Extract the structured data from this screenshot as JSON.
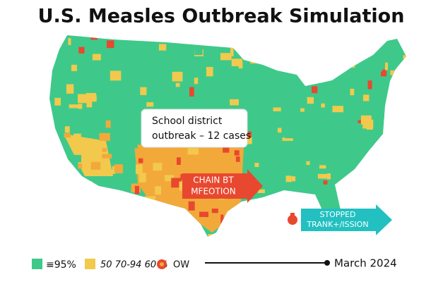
{
  "title": "U.S. Measles Outbreak Simulation",
  "callout": {
    "lines": [
      "School district",
      "outbreak – 12 cases"
    ]
  },
  "arrows": [
    {
      "lines": [
        "CHAIN BT",
        "MFEOTION"
      ]
    },
    {
      "lines": [
        "STOPPED",
        "TRANK+/ISSION"
      ]
    }
  ],
  "legend": [
    {
      "label": "≡95%"
    },
    {
      "label": "50 70-94 60 %"
    },
    {
      "label": "OW"
    }
  ],
  "timeline": {
    "label": "March 2024"
  }
}
